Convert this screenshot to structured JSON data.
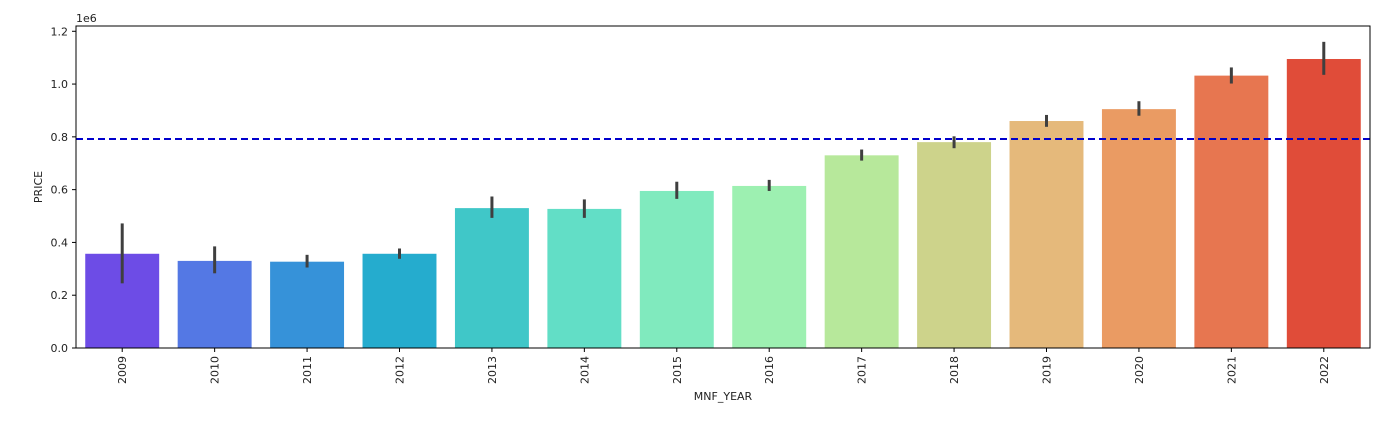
{
  "chart_data": {
    "type": "bar",
    "categories": [
      "2009",
      "2010",
      "2011",
      "2012",
      "2013",
      "2014",
      "2015",
      "2016",
      "2017",
      "2018",
      "2019",
      "2020",
      "2021",
      "2022"
    ],
    "values": [
      357000,
      330000,
      327000,
      357000,
      530000,
      527000,
      595000,
      614000,
      730000,
      780000,
      860000,
      905000,
      1032000,
      1095000
    ],
    "error_low": [
      245000,
      283000,
      305000,
      338000,
      493000,
      493000,
      565000,
      595000,
      710000,
      757000,
      838000,
      880000,
      1002000,
      1035000
    ],
    "error_high": [
      472000,
      385000,
      353000,
      377000,
      574000,
      563000,
      630000,
      637000,
      752000,
      802000,
      883000,
      935000,
      1063000,
      1160000
    ],
    "colors": [
      "#6d4ce6",
      "#5478e4",
      "#3692d9",
      "#25acce",
      "#40c7c8",
      "#62dec6",
      "#80eabe",
      "#9df0b1",
      "#b7e89b",
      "#cdd38b",
      "#e5b97b",
      "#ea9b63",
      "#e77650",
      "#e04c39"
    ],
    "mean_line": {
      "value": 792000,
      "color": "#0000cc",
      "style": "dashed"
    },
    "title": "",
    "xlabel": "MNF_YEAR",
    "ylabel": "PRICE",
    "y_offset_label": "1e6",
    "ylim": [
      0,
      1220000
    ],
    "yticks": [
      0,
      200000,
      400000,
      600000,
      800000,
      1000000,
      1200000
    ],
    "ytick_labels": [
      "0.0",
      "0.2",
      "0.4",
      "0.6",
      "0.8",
      "1.0",
      "1.2"
    ],
    "grid": false,
    "xtick_rotation": "vertical"
  }
}
